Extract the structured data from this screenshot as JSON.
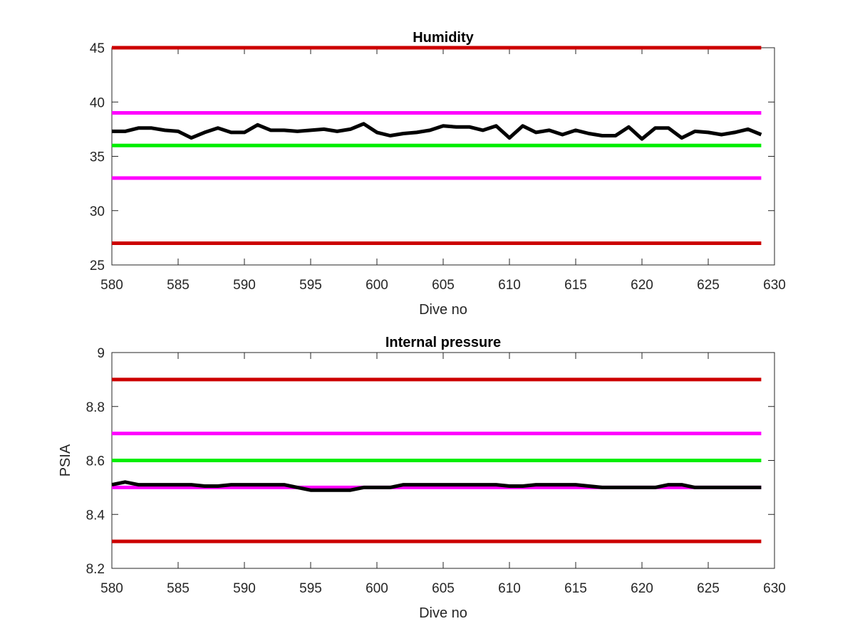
{
  "chart_data": [
    {
      "type": "line",
      "title": "Humidity",
      "xlabel": "Dive no",
      "ylabel": "",
      "xlim": [
        580,
        630
      ],
      "ylim": [
        25,
        45
      ],
      "xticks": [
        580,
        585,
        590,
        595,
        600,
        605,
        610,
        615,
        620,
        625,
        630
      ],
      "yticks": [
        25,
        30,
        35,
        40,
        45
      ],
      "grid": false,
      "series": [
        {
          "color": "#000000",
          "x": [
            580,
            581,
            582,
            583,
            584,
            585,
            586,
            587,
            588,
            589,
            590,
            591,
            592,
            593,
            594,
            595,
            596,
            597,
            598,
            599,
            600,
            601,
            602,
            603,
            604,
            605,
            606,
            607,
            608,
            609,
            610,
            611,
            612,
            613,
            614,
            615,
            616,
            617,
            618,
            619,
            620,
            621,
            622,
            623,
            624,
            625,
            626,
            627,
            628,
            629
          ],
          "y": [
            37.3,
            37.3,
            37.6,
            37.6,
            37.4,
            37.3,
            36.7,
            37.2,
            37.6,
            37.2,
            37.2,
            37.9,
            37.4,
            37.4,
            37.3,
            37.4,
            37.5,
            37.3,
            37.5,
            38.0,
            37.2,
            36.9,
            37.1,
            37.2,
            37.4,
            37.8,
            37.7,
            37.7,
            37.4,
            37.8,
            36.7,
            37.8,
            37.2,
            37.4,
            37.0,
            37.4,
            37.1,
            36.9,
            36.9,
            37.7,
            36.6,
            37.6,
            37.6,
            36.7,
            37.3,
            37.2,
            37.0,
            37.2,
            37.5,
            37.0
          ]
        },
        {
          "color": "#cc0000",
          "x": [
            580,
            629
          ],
          "y": [
            45,
            45
          ]
        },
        {
          "color": "#ff00ff",
          "x": [
            580,
            629
          ],
          "y": [
            39,
            39
          ]
        },
        {
          "color": "#00ee00",
          "x": [
            580,
            629
          ],
          "y": [
            36,
            36
          ]
        },
        {
          "color": "#ff00ff",
          "x": [
            580,
            629
          ],
          "y": [
            33,
            33
          ]
        },
        {
          "color": "#cc0000",
          "x": [
            580,
            629
          ],
          "y": [
            27,
            27
          ]
        }
      ]
    },
    {
      "type": "line",
      "title": "Internal pressure",
      "xlabel": "Dive no",
      "ylabel": "PSIA",
      "xlim": [
        580,
        630
      ],
      "ylim": [
        8.2,
        9
      ],
      "xticks": [
        580,
        585,
        590,
        595,
        600,
        605,
        610,
        615,
        620,
        625,
        630
      ],
      "yticks": [
        8.2,
        8.4,
        8.6,
        8.8,
        9
      ],
      "grid": false,
      "series": [
        {
          "color": "#000000",
          "x": [
            580,
            581,
            582,
            583,
            584,
            585,
            586,
            587,
            588,
            589,
            590,
            591,
            592,
            593,
            594,
            595,
            596,
            597,
            598,
            599,
            600,
            601,
            602,
            603,
            604,
            605,
            606,
            607,
            608,
            609,
            610,
            611,
            612,
            613,
            614,
            615,
            616,
            617,
            618,
            619,
            620,
            621,
            622,
            623,
            624,
            625,
            626,
            627,
            628,
            629
          ],
          "y": [
            8.51,
            8.52,
            8.51,
            8.51,
            8.51,
            8.51,
            8.51,
            8.505,
            8.505,
            8.51,
            8.51,
            8.51,
            8.51,
            8.51,
            8.5,
            8.49,
            8.49,
            8.49,
            8.49,
            8.5,
            8.5,
            8.5,
            8.51,
            8.51,
            8.51,
            8.51,
            8.51,
            8.51,
            8.51,
            8.51,
            8.505,
            8.505,
            8.51,
            8.51,
            8.51,
            8.51,
            8.505,
            8.5,
            8.5,
            8.5,
            8.5,
            8.5,
            8.51,
            8.51,
            8.5,
            8.5,
            8.5,
            8.5,
            8.5,
            8.5
          ]
        },
        {
          "color": "#cc0000",
          "x": [
            580,
            629
          ],
          "y": [
            8.9,
            8.9
          ]
        },
        {
          "color": "#ff00ff",
          "x": [
            580,
            629
          ],
          "y": [
            8.7,
            8.7
          ]
        },
        {
          "color": "#00ee00",
          "x": [
            580,
            629
          ],
          "y": [
            8.6,
            8.6
          ]
        },
        {
          "color": "#ff00ff",
          "x": [
            580,
            629
          ],
          "y": [
            8.5,
            8.5
          ]
        },
        {
          "color": "#cc0000",
          "x": [
            580,
            629
          ],
          "y": [
            8.3,
            8.3
          ]
        }
      ]
    }
  ]
}
